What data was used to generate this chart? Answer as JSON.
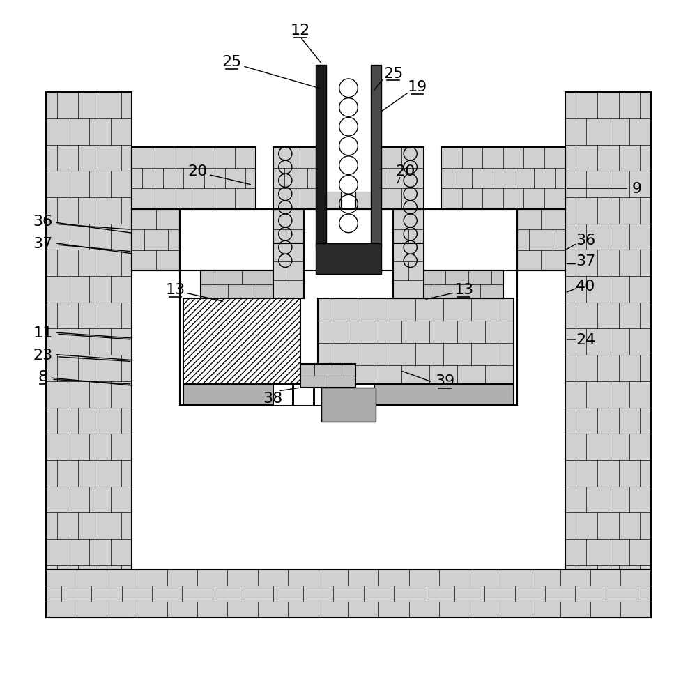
{
  "bg_color": "#ffffff",
  "line_color": "#000000",
  "fig_width": 10.0,
  "fig_height": 9.78,
  "brick_fc": "#d8d8d8"
}
